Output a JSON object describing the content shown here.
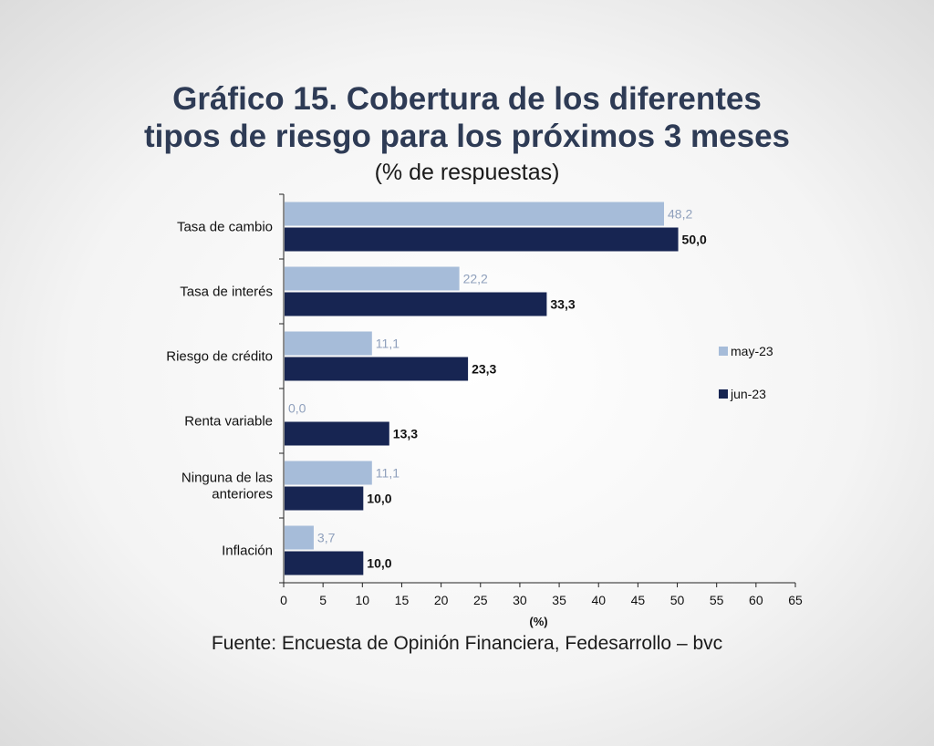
{
  "header": {
    "title_line1": "Gráfico 15. Cobertura de los diferentes",
    "title_line2": "tipos de riesgo para los próximos 3 meses",
    "subtitle": "(% de respuestas)"
  },
  "footer": {
    "source": "Fuente: Encuesta de Opinión Financiera, Fedesarrollo – bvc"
  },
  "colors": {
    "may": "#a6bcd9",
    "jun": "#172552",
    "may_label": "#8fa0bc",
    "jun_label": "#111111"
  },
  "chart_data": {
    "type": "bar",
    "orientation": "horizontal",
    "title": "Gráfico 15. Cobertura de los diferentes tipos de riesgo para los próximos 3 meses",
    "subtitle": "(% de respuestas)",
    "xlabel": "(%)",
    "ylabel": "",
    "xlim": [
      0,
      65
    ],
    "xticks": [
      0,
      5,
      10,
      15,
      20,
      25,
      30,
      35,
      40,
      45,
      50,
      55,
      60,
      65
    ],
    "categories": [
      [
        "Tasa de cambio"
      ],
      [
        "Tasa de interés"
      ],
      [
        "Riesgo de crédito"
      ],
      [
        "Renta variable"
      ],
      [
        "Ninguna de las",
        "anteriores"
      ],
      [
        "Inflación"
      ]
    ],
    "series": [
      {
        "name": "may-23",
        "values": [
          48.2,
          22.2,
          11.1,
          0.0,
          11.1,
          3.7
        ],
        "labels": [
          "48,2",
          "22,2",
          "11,1",
          "0,0",
          "11,1",
          "3,7"
        ]
      },
      {
        "name": "jun-23",
        "values": [
          50.0,
          33.3,
          23.3,
          13.3,
          10.0,
          10.0
        ],
        "labels": [
          "50,0",
          "33,3",
          "23,3",
          "13,3",
          "10,0",
          "10,0"
        ]
      }
    ],
    "legend_position": "right",
    "grid": false
  }
}
